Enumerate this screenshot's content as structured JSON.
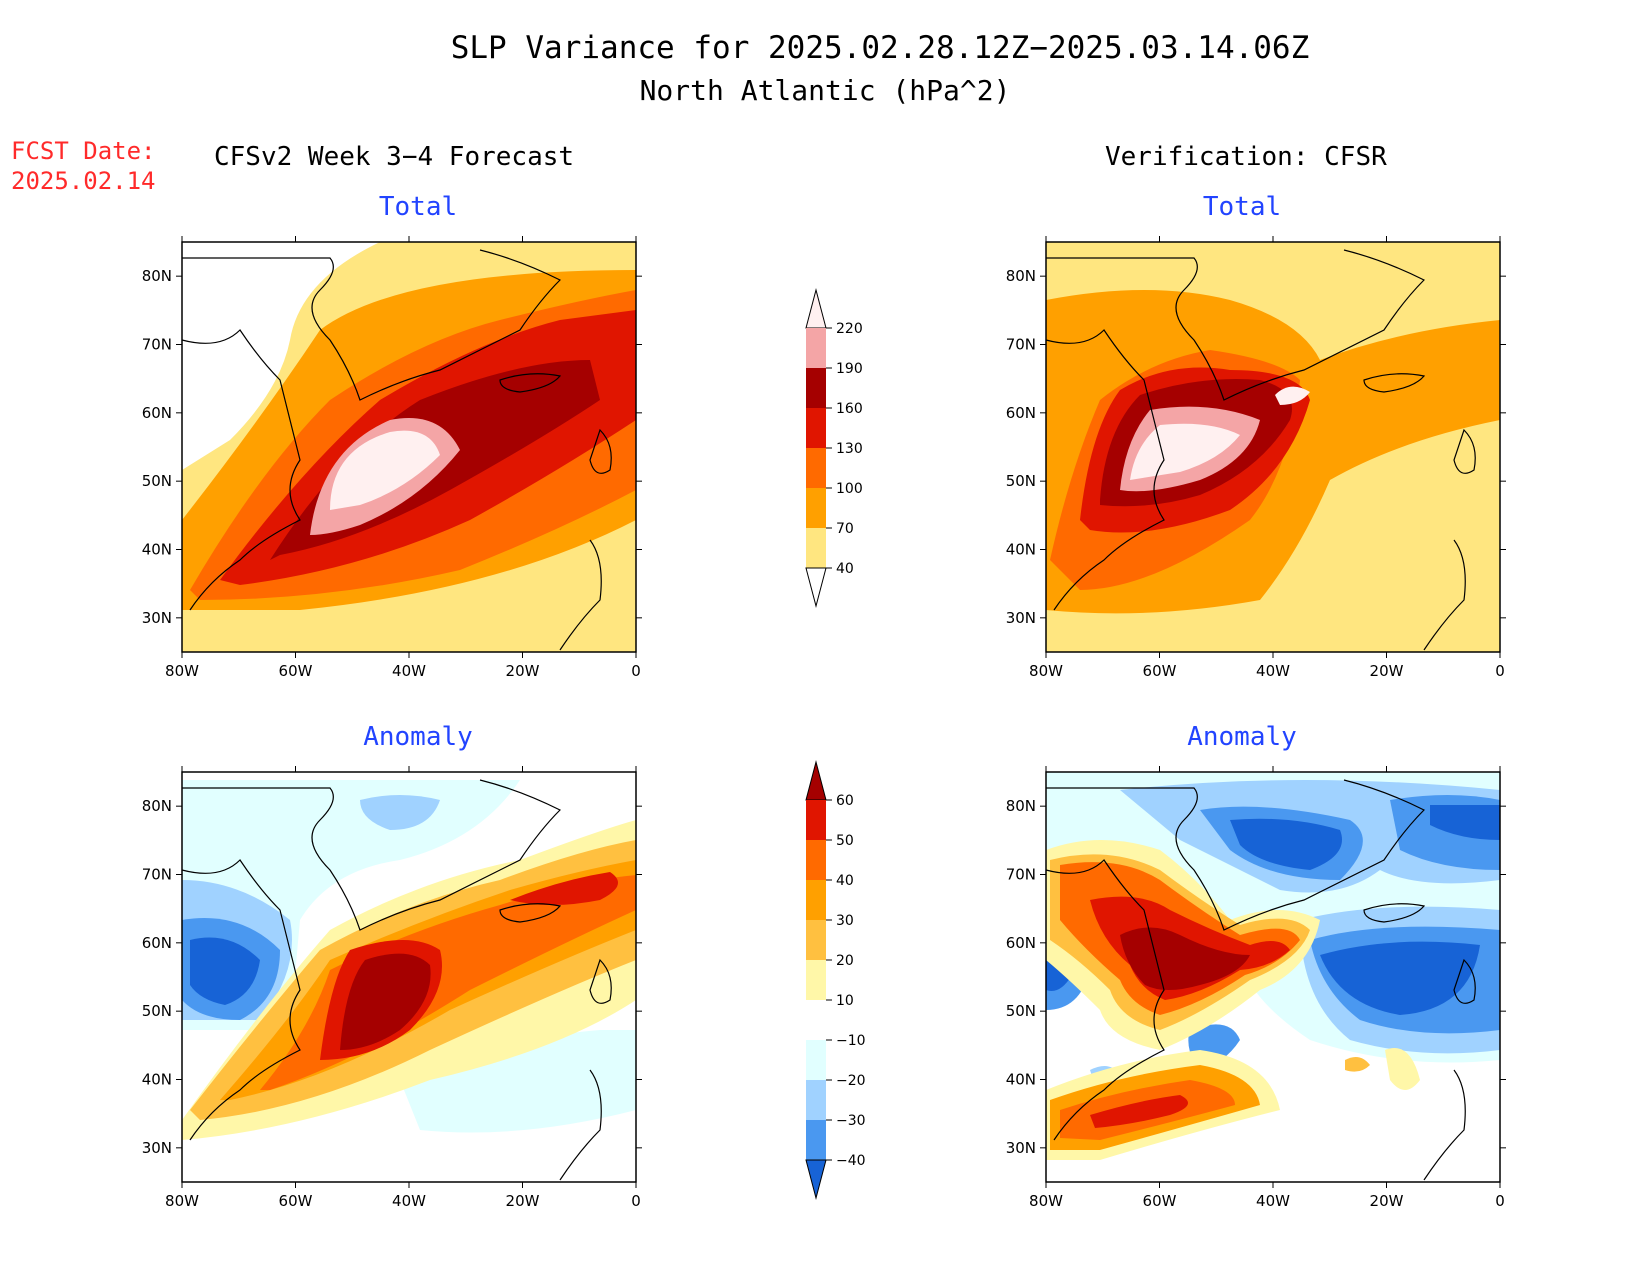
{
  "title": "SLP Variance for 2025.02.28.12Z−2025.03.14.06Z",
  "subtitle": "North Atlantic (hPa^2)",
  "fcst_label": "FCST Date:",
  "fcst_date": "2025.02.14",
  "left_heading": "CFSv2 Week 3−4 Forecast",
  "right_heading": "Verification: CFSR",
  "panel_total": "Total",
  "panel_anomaly": "Anomaly",
  "lat_labels": [
    "80N",
    "70N",
    "60N",
    "50N",
    "40N",
    "30N"
  ],
  "lon_labels": [
    "80W",
    "60W",
    "40W",
    "20W",
    "0"
  ],
  "total_scale": {
    "levels": [
      "220",
      "190",
      "160",
      "130",
      "100",
      "70",
      "40"
    ],
    "colors": [
      "#fff0f0",
      "#f4a5a6",
      "#a50000",
      "#e01500",
      "#ff6a00",
      "#ffa000",
      "#ffe680"
    ]
  },
  "anomaly_scale": {
    "levels": [
      "60",
      "50",
      "40",
      "30",
      "20",
      "10",
      "−10",
      "−20",
      "−30",
      "−40"
    ],
    "colors": [
      "#a50000",
      "#e01500",
      "#ff6a00",
      "#ffa000",
      "#ffc040",
      "#fff7a8",
      "#ffffff",
      "#e1ffff",
      "#a0d2ff",
      "#4a98f0",
      "#1763d6"
    ]
  },
  "chart_data": [
    {
      "type": "heatmap",
      "panel": "CFSv2 Total",
      "region": "North Atlantic",
      "lon_range": [
        "80W",
        "0"
      ],
      "lat_range": [
        "25N",
        "85N"
      ],
      "max_region": "near 50N 45W",
      "max_value_range": ">220"
    },
    {
      "type": "heatmap",
      "panel": "CFSR Total",
      "region": "North Atlantic",
      "lon_range": [
        "80W",
        "0"
      ],
      "lat_range": [
        "25N",
        "85N"
      ],
      "max_region": "near 55N 55W",
      "max_value_range": ">220"
    },
    {
      "type": "heatmap",
      "panel": "CFSv2 Anomaly",
      "region": "North Atlantic",
      "lon_range": [
        "80W",
        "0"
      ],
      "lat_range": [
        "25N",
        "85N"
      ],
      "max_region": "near 52N 45W",
      "min_region": "near 55N 70W"
    },
    {
      "type": "heatmap",
      "panel": "CFSR Anomaly",
      "region": "North Atlantic",
      "lon_range": [
        "80W",
        "0"
      ],
      "lat_range": [
        "25N",
        "85N"
      ],
      "max_region": "near 58N 55W",
      "min_region": "near 55N 20W"
    }
  ]
}
